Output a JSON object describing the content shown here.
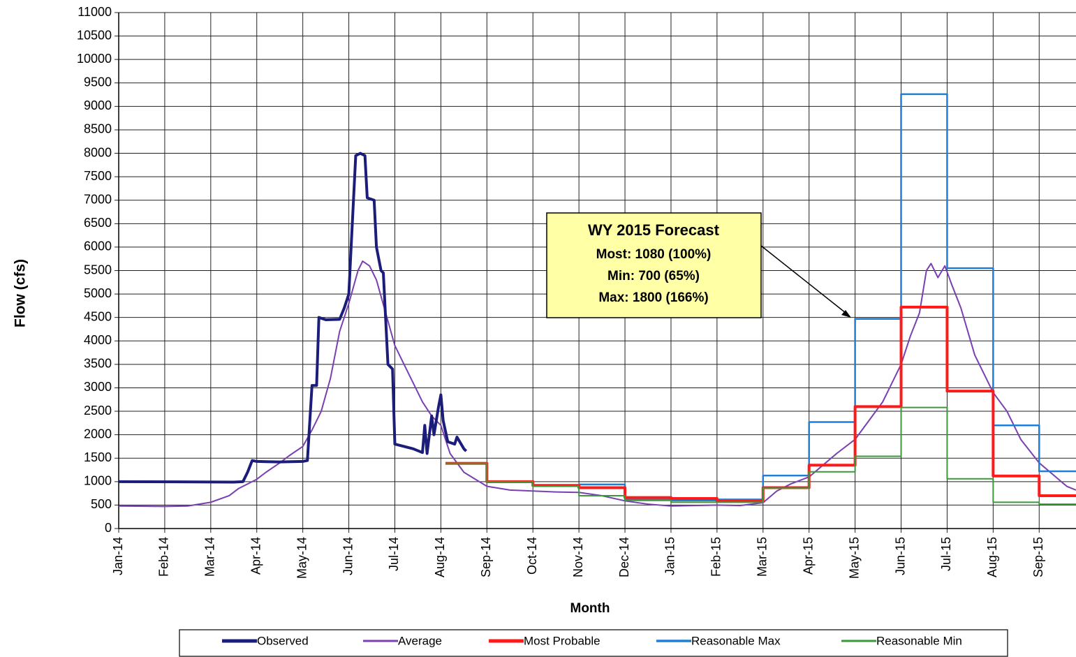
{
  "chart_data": {
    "type": "line",
    "ylabel": "Flow (cfs)",
    "xlabel": "Month",
    "grid": true,
    "xlim": [
      0,
      20.8
    ],
    "xticks": [
      {
        "value": 0,
        "label": "Jan-14"
      },
      {
        "value": 1,
        "label": "Feb-14"
      },
      {
        "value": 2,
        "label": "Mar-14"
      },
      {
        "value": 3,
        "label": "Apr-14"
      },
      {
        "value": 4,
        "label": "May-14"
      },
      {
        "value": 5,
        "label": "Jun-14"
      },
      {
        "value": 6,
        "label": "Jul-14"
      },
      {
        "value": 7,
        "label": "Aug-14"
      },
      {
        "value": 8,
        "label": "Sep-14"
      },
      {
        "value": 9,
        "label": "Oct-14"
      },
      {
        "value": 10,
        "label": "Nov-14"
      },
      {
        "value": 11,
        "label": "Dec-14"
      },
      {
        "value": 12,
        "label": "Jan-15"
      },
      {
        "value": 13,
        "label": "Feb-15"
      },
      {
        "value": 14,
        "label": "Mar-15"
      },
      {
        "value": 15,
        "label": "Apr-15"
      },
      {
        "value": 16,
        "label": "May-15"
      },
      {
        "value": 17,
        "label": "Jun-15"
      },
      {
        "value": 18,
        "label": "Jul-15"
      },
      {
        "value": 19,
        "label": "Aug-15"
      },
      {
        "value": 20,
        "label": "Sep-15"
      }
    ],
    "ylim": [
      0,
      11000
    ],
    "yticks": [
      0,
      500,
      1000,
      1500,
      2000,
      2500,
      3000,
      3500,
      4000,
      4500,
      5000,
      5500,
      6000,
      6500,
      7000,
      7500,
      8000,
      8500,
      9000,
      9500,
      10000,
      10500,
      11000
    ],
    "annotation": {
      "text": [
        "WY 2015 Forecast",
        "Most: 1080 (100%)",
        "Min: 700 (65%)",
        "Max: 1800 (166%)"
      ]
    },
    "series": [
      {
        "name": "Observed",
        "color": "#1c1c7a",
        "width": 4,
        "x": [
          0,
          2.5,
          2.7,
          2.8,
          2.9,
          3.0,
          3.5,
          4.0,
          4.1,
          4.2,
          4.3,
          4.35,
          4.5,
          4.8,
          4.9,
          5.0,
          5.05,
          5.15,
          5.25,
          5.35,
          5.4,
          5.55,
          5.6,
          5.7,
          5.75,
          5.85,
          5.95,
          6.0,
          6.2,
          6.4,
          6.6,
          6.65,
          6.7,
          6.8,
          6.85,
          6.95,
          7.0,
          7.05,
          7.15,
          7.3,
          7.35,
          7.5,
          7.55
        ],
        "values": [
          1000,
          990,
          1000,
          1200,
          1450,
          1430,
          1420,
          1430,
          1450,
          3050,
          3050,
          4500,
          4450,
          4460,
          4700,
          5000,
          6000,
          7950,
          8000,
          7950,
          7050,
          7000,
          6000,
          5500,
          5450,
          3500,
          3400,
          1800,
          1750,
          1700,
          1620,
          2200,
          1600,
          2400,
          2000,
          2600,
          2850,
          2300,
          1850,
          1800,
          1950,
          1700,
          1650
        ]
      },
      {
        "name": "Average",
        "color": "#7a3fb0",
        "width": 2,
        "x": [
          0,
          1,
          1.5,
          2.0,
          2.4,
          2.6,
          3.0,
          3.2,
          3.5,
          3.7,
          4.0,
          4.2,
          4.4,
          4.6,
          4.8,
          5.0,
          5.2,
          5.3,
          5.45,
          5.6,
          5.8,
          6.0,
          6.3,
          6.6,
          6.8,
          7.0,
          7.2,
          7.5,
          8.0,
          8.5,
          9.0,
          9.5,
          10.0,
          10.5,
          11,
          11.5,
          12,
          12.5,
          13,
          13.5,
          14,
          14.3,
          14.6,
          15,
          15.3,
          15.6,
          16,
          16.3,
          16.6,
          17,
          17.2,
          17.4,
          17.55,
          17.65,
          17.8,
          17.95,
          18.1,
          18.3,
          18.6,
          19,
          19.3,
          19.6,
          20,
          20.3,
          20.6,
          20.8
        ],
        "values": [
          480,
          470,
          480,
          560,
          700,
          850,
          1050,
          1200,
          1400,
          1550,
          1750,
          2100,
          2500,
          3200,
          4200,
          4800,
          5500,
          5700,
          5600,
          5300,
          4600,
          3900,
          3300,
          2700,
          2400,
          2200,
          1600,
          1200,
          900,
          820,
          800,
          780,
          770,
          700,
          590,
          520,
          480,
          490,
          500,
          490,
          550,
          800,
          950,
          1100,
          1350,
          1600,
          1900,
          2300,
          2700,
          3500,
          4100,
          4600,
          5500,
          5650,
          5350,
          5600,
          5200,
          4700,
          3700,
          2900,
          2500,
          1900,
          1400,
          1150,
          900,
          820
        ]
      },
      {
        "name": "Most Probable",
        "color": "#ff1a1a",
        "width": 4,
        "x": [
          7.1,
          8,
          8,
          9,
          9,
          10,
          10,
          11,
          11,
          12,
          12,
          13,
          13,
          14,
          14,
          15,
          15,
          16,
          16,
          17,
          17,
          18,
          18,
          19,
          19,
          20,
          20,
          20.8
        ],
        "values": [
          1390,
          1390,
          1000,
          1000,
          920,
          920,
          870,
          870,
          660,
          660,
          640,
          640,
          580,
          580,
          870,
          870,
          1350,
          1350,
          2600,
          2600,
          4720,
          4720,
          2930,
          2930,
          1120,
          1120,
          700,
          700
        ]
      },
      {
        "name": "Reasonable Max",
        "color": "#1f7fd4",
        "width": 2.5,
        "x": [
          7.1,
          8,
          8,
          9,
          9,
          10,
          10,
          11,
          11,
          12,
          12,
          13,
          13,
          14,
          14,
          15,
          15,
          16,
          16,
          17,
          17,
          18,
          18,
          19,
          19,
          20,
          20,
          20.8
        ],
        "values": [
          1390,
          1390,
          1000,
          1000,
          920,
          920,
          940,
          940,
          620,
          620,
          600,
          600,
          620,
          620,
          1130,
          1130,
          2270,
          2270,
          4470,
          4470,
          9260,
          9260,
          5550,
          5550,
          2200,
          2200,
          1220,
          1220
        ]
      },
      {
        "name": "Reasonable Min",
        "color": "#3a9a3a",
        "width": 2,
        "x": [
          7.1,
          8,
          8,
          9,
          9,
          10,
          10,
          11,
          11,
          12,
          12,
          13,
          13,
          14,
          14,
          15,
          15,
          16,
          16,
          17,
          17,
          18,
          18,
          19,
          19,
          20,
          20,
          20.8
        ],
        "values": [
          1390,
          1390,
          1000,
          1000,
          900,
          900,
          700,
          700,
          600,
          600,
          560,
          560,
          560,
          560,
          860,
          860,
          1210,
          1210,
          1540,
          1540,
          2580,
          2580,
          1060,
          1060,
          560,
          560,
          520,
          520
        ]
      }
    ]
  }
}
